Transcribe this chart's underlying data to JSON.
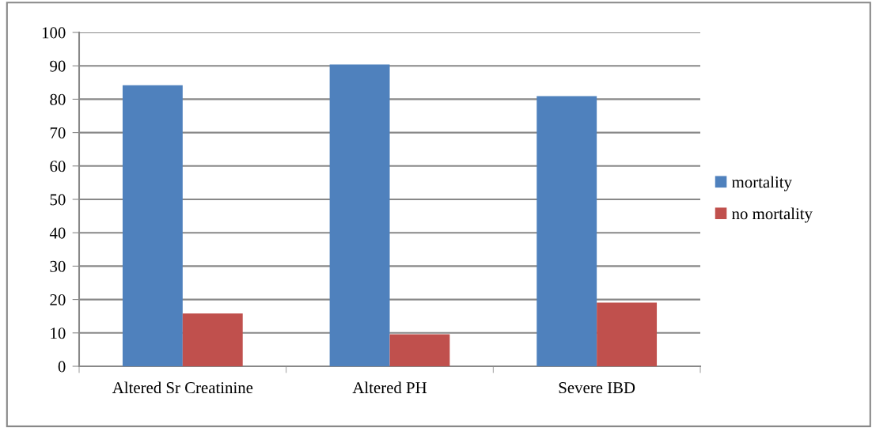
{
  "chart_data": {
    "type": "bar",
    "categories": [
      "Altered Sr Creatinine",
      "Altered PH",
      "Severe IBD"
    ],
    "series": [
      {
        "name": "mortality",
        "color": "#4f81bd",
        "values": [
          84.2,
          90.4,
          80.9
        ]
      },
      {
        "name": "no mortality",
        "color": "#c0504d",
        "values": [
          15.8,
          9.6,
          19.1
        ]
      }
    ],
    "ylim": [
      0,
      100
    ],
    "yticks": [
      0,
      10,
      20,
      30,
      40,
      50,
      60,
      70,
      80,
      90,
      100
    ],
    "grid": "y",
    "legend": "right"
  }
}
